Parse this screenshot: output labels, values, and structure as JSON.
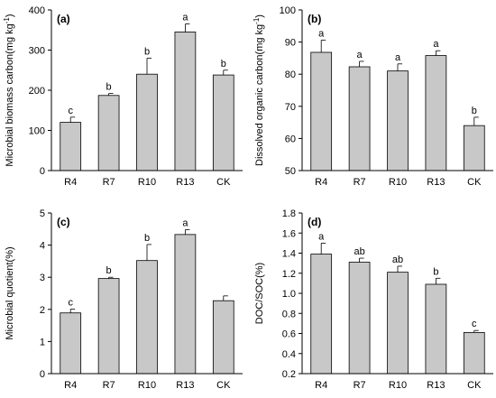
{
  "colors": {
    "bar_fill": "#c8c8c8",
    "bar_stroke": "#000000",
    "axis": "#000000"
  },
  "chart_data": [
    {
      "type": "bar",
      "panel_label": "(a)",
      "ylabel": "Microbial biomass carbon(mg kg-1)",
      "ylabel_main": "Microbial biomass carbon(mg kg",
      "ylabel_sup": "-1",
      "ylabel_close": ")",
      "categories": [
        "R4",
        "R7",
        "R10",
        "R13",
        "CK"
      ],
      "values": [
        120,
        187,
        240,
        345,
        238
      ],
      "errors": [
        13,
        5,
        40,
        20,
        12
      ],
      "significance": [
        "c",
        "b",
        "b",
        "a",
        "b"
      ],
      "ylim": [
        0,
        400
      ],
      "yticks": [
        0,
        100,
        200,
        300,
        400
      ],
      "ytick_labels": [
        "0",
        "100",
        "200",
        "300",
        "400"
      ]
    },
    {
      "type": "bar",
      "panel_label": "(b)",
      "ylabel": "Dissolved organic carbon(mg kg-1)",
      "ylabel_main": "Dissolved organic carbon(mg kg",
      "ylabel_sup": "-1",
      "ylabel_close": ")",
      "categories": [
        "R4",
        "R7",
        "R10",
        "R13",
        "CK"
      ],
      "values": [
        86.8,
        82.3,
        81.0,
        85.8,
        64.0
      ],
      "errors": [
        3.8,
        1.7,
        2.2,
        1.5,
        2.6
      ],
      "significance": [
        "a",
        "a",
        "a",
        "a",
        "b"
      ],
      "ylim": [
        50,
        100
      ],
      "yticks": [
        50,
        60,
        70,
        80,
        90,
        100
      ],
      "ytick_labels": [
        "50",
        "60",
        "70",
        "80",
        "90",
        "100"
      ]
    },
    {
      "type": "bar",
      "panel_label": "(c)",
      "ylabel": "Microbial quotient(%)",
      "ylabel_main": "Microbial quotient(%)",
      "ylabel_sup": "",
      "ylabel_close": "",
      "categories": [
        "R4",
        "R7",
        "R10",
        "R13",
        "CK"
      ],
      "values": [
        1.89,
        2.96,
        3.52,
        4.33,
        2.27
      ],
      "errors": [
        0.12,
        0.04,
        0.5,
        0.15,
        0.15
      ],
      "significance": [
        "c",
        "b",
        "b",
        "a",
        ""
      ],
      "ylim": [
        0,
        5
      ],
      "yticks": [
        0,
        1,
        2,
        3,
        4,
        5
      ],
      "ytick_labels": [
        "0",
        "1",
        "2",
        "3",
        "4",
        "5"
      ]
    },
    {
      "type": "bar",
      "panel_label": "(d)",
      "ylabel": "DOC/SOC(%)",
      "ylabel_main": "DOC/SOC(%)",
      "ylabel_sup": "",
      "ylabel_close": "",
      "categories": [
        "R4",
        "R7",
        "R10",
        "R13",
        "CK"
      ],
      "values": [
        1.39,
        1.31,
        1.21,
        1.09,
        0.61
      ],
      "errors": [
        0.11,
        0.04,
        0.06,
        0.06,
        0.02
      ],
      "significance": [
        "a",
        "ab",
        "ab",
        "b",
        "c"
      ],
      "ylim": [
        0.2,
        1.8
      ],
      "yticks": [
        0.2,
        0.4,
        0.6,
        0.8,
        1.0,
        1.2,
        1.4,
        1.6,
        1.8
      ],
      "ytick_labels": [
        "0.2",
        "0.4",
        "0.6",
        "0.8",
        "1.0",
        "1.2",
        "1.4",
        "1.6",
        "1.8"
      ]
    }
  ]
}
